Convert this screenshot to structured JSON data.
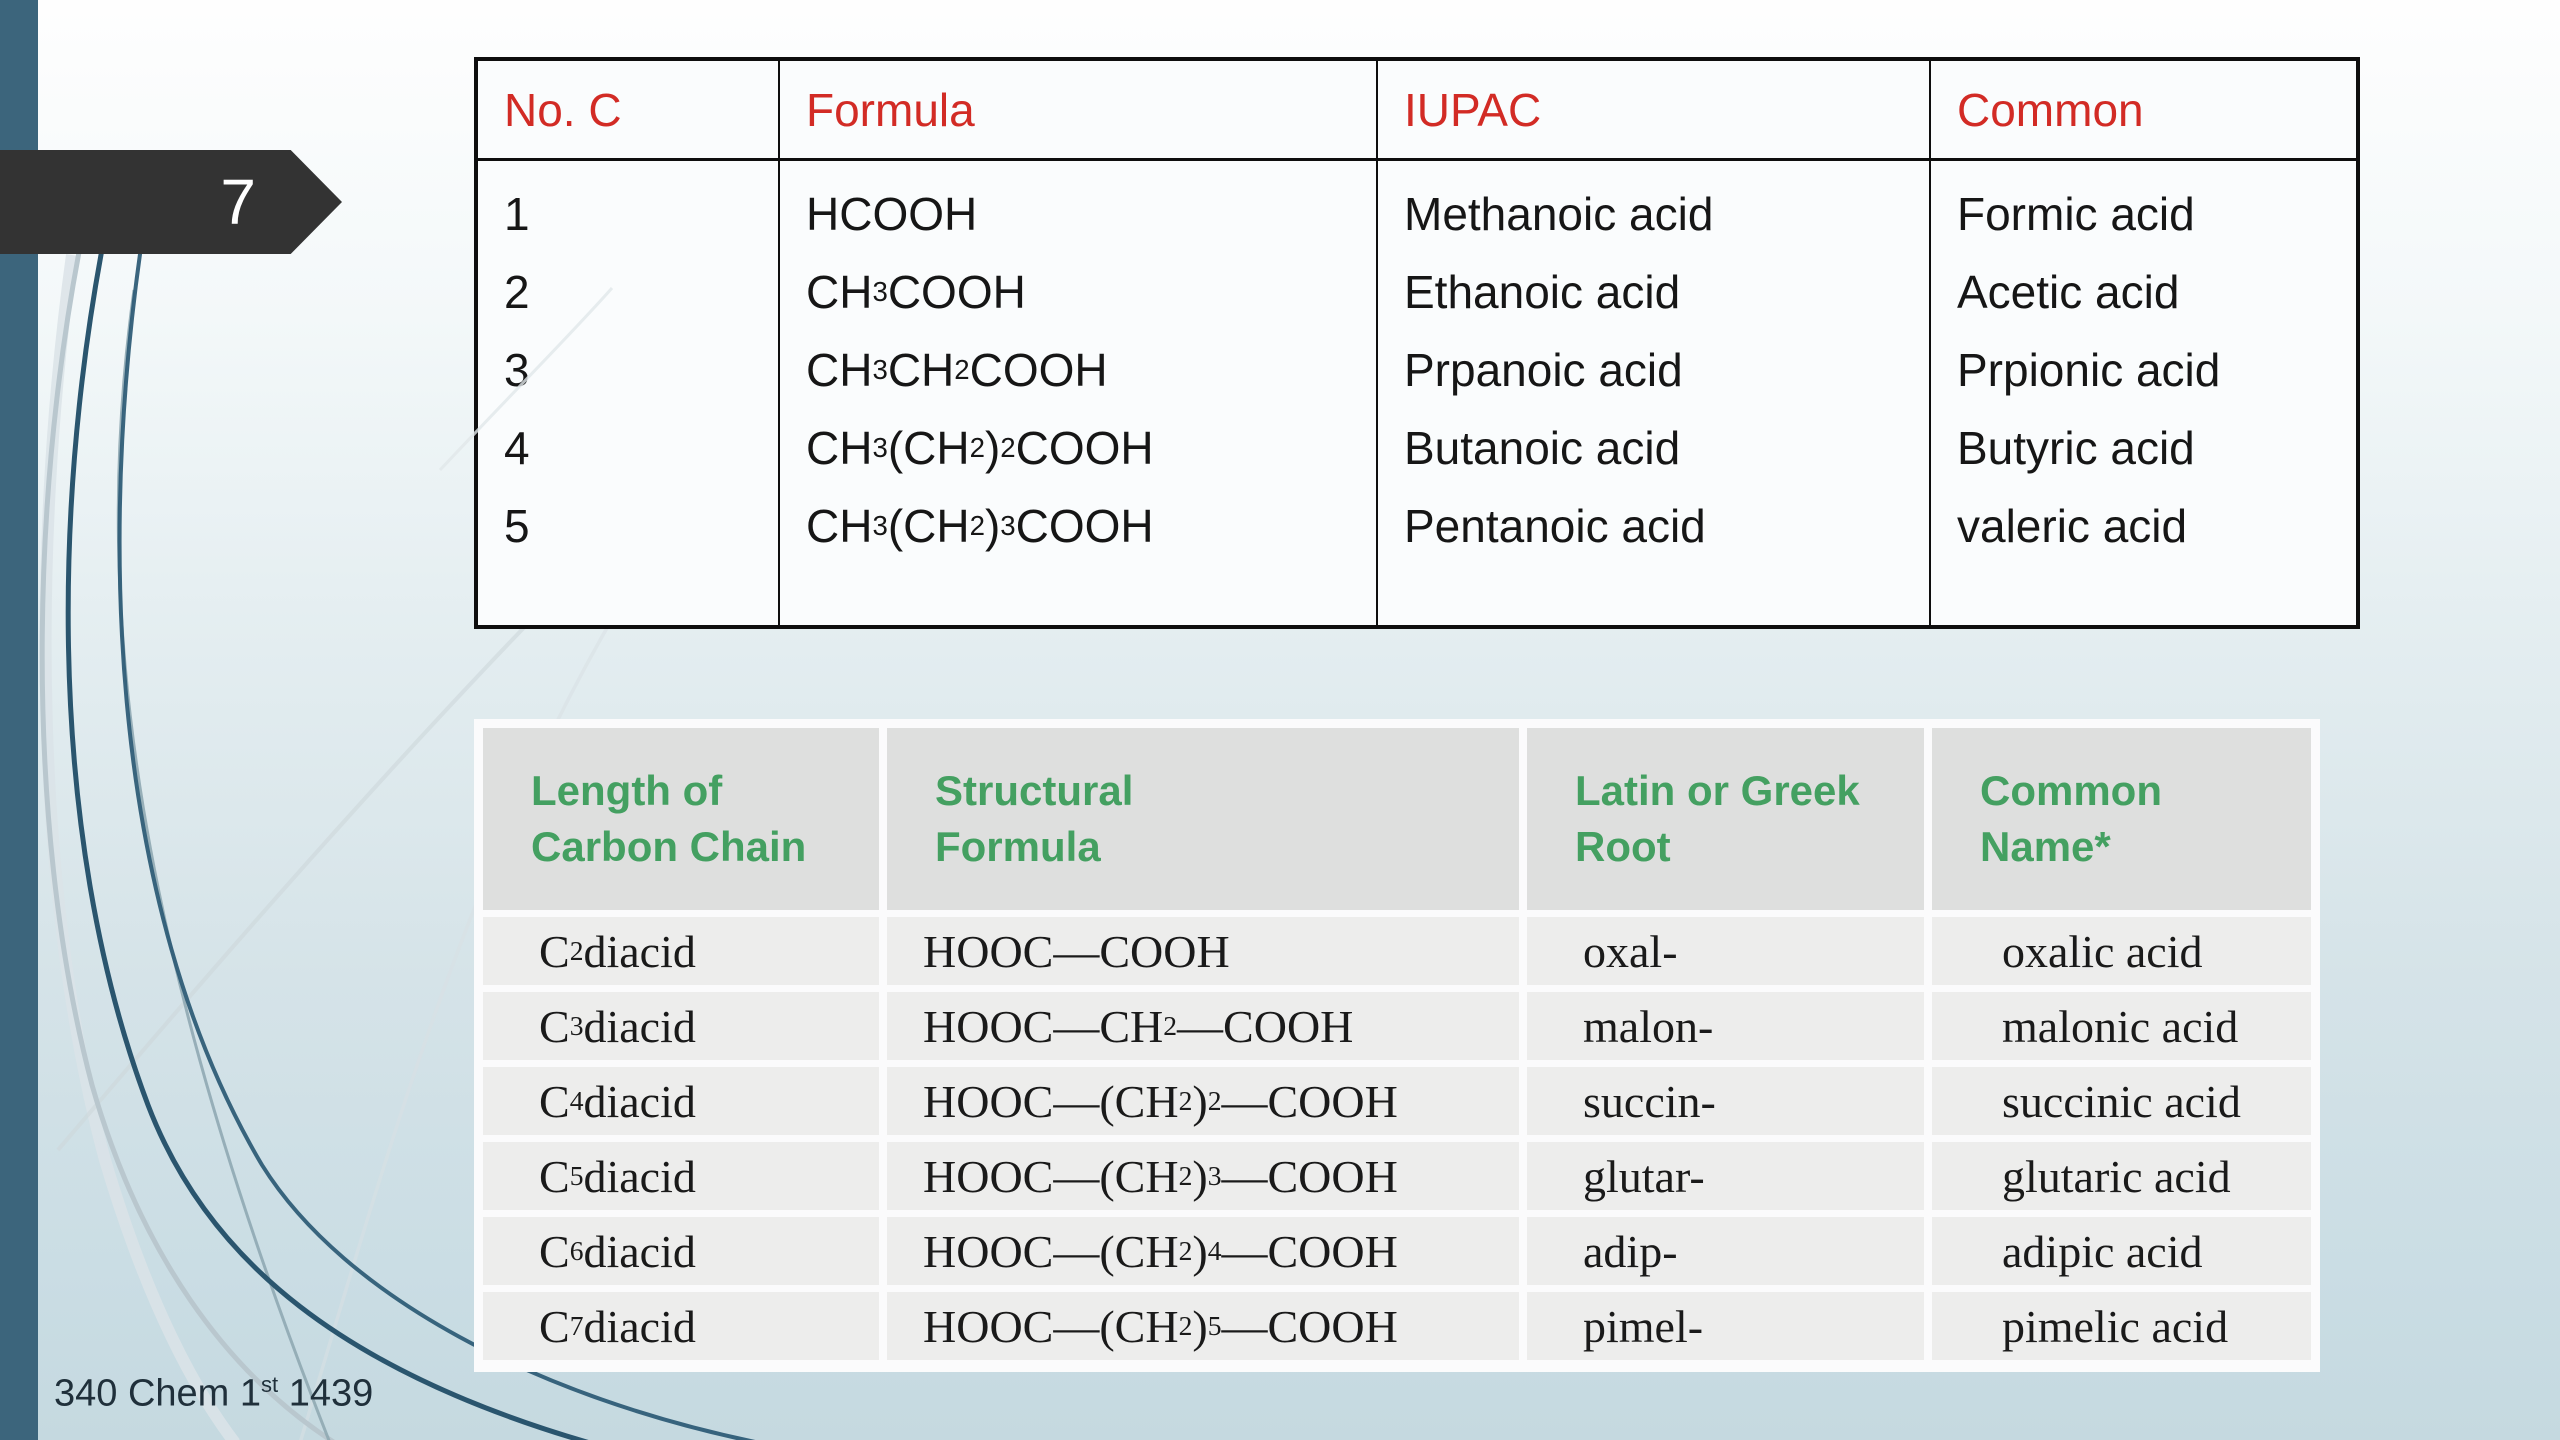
{
  "slide": {
    "page_number": "7",
    "footer": "340 Chem 1^{st} 1439"
  },
  "colors": {
    "header_red": "#d22b25",
    "header_green": "#44a061",
    "sidebar_blue": "#3c657c",
    "arrow_charcoal": "#333333"
  },
  "acid_table": {
    "headers": [
      "No. C",
      "Formula",
      "IUPAC",
      "Common"
    ],
    "rows": [
      [
        "1",
        "HCOOH",
        "Methanoic acid",
        "Formic acid"
      ],
      [
        "2",
        "CH_{3}COOH",
        "Ethanoic acid",
        "Acetic acid"
      ],
      [
        "3",
        "CH_{3}CH_{2}COOH",
        "Prpanoic acid",
        "Prpionic acid"
      ],
      [
        "4",
        "CH_{3}(CH_{2})_{2}COOH",
        "Butanoic acid",
        "Butyric acid"
      ],
      [
        "5",
        "CH_{3}(CH_{2})_{3}COOH",
        "Pentanoic acid",
        "valeric acid"
      ]
    ]
  },
  "diacid_table": {
    "headers": [
      [
        "Length of",
        "Carbon Chain"
      ],
      [
        "Structural",
        "Formula"
      ],
      [
        "Latin or Greek",
        "Root"
      ],
      [
        "Common",
        "Name*"
      ]
    ],
    "rows": [
      [
        "C_{2} diacid",
        "HOOC—COOH",
        "oxal-",
        "oxalic acid"
      ],
      [
        "C_{3} diacid",
        "HOOC—CH_{2}—COOH",
        "malon-",
        "malonic acid"
      ],
      [
        "C_{4} diacid",
        "HOOC—(CH_{2})_{2}—COOH",
        "succin-",
        "succinic acid"
      ],
      [
        "C_{5} diacid",
        "HOOC—(CH_{2})_{3}—COOH",
        "glutar-",
        "glutaric acid"
      ],
      [
        "C_{6} diacid",
        "HOOC—(CH_{2})_{4}—COOH",
        "adip-",
        "adipic acid"
      ],
      [
        "C_{7} diacid",
        "HOOC—(CH_{2})_{5}—COOH",
        "pimel-",
        "pimelic acid"
      ]
    ]
  }
}
